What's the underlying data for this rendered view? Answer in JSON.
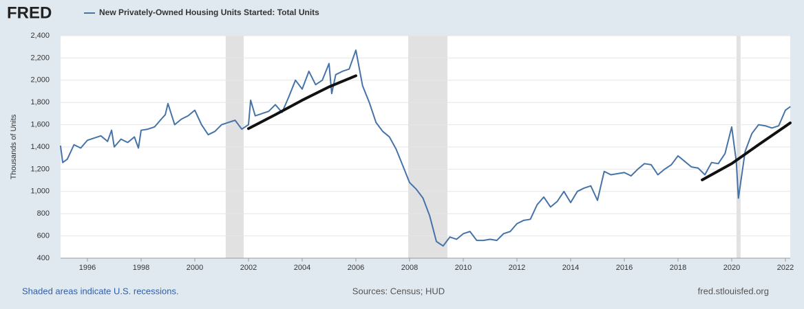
{
  "chart_data": {
    "type": "line",
    "logo": "FRED",
    "y_label": "Thousands of Units",
    "footer_left": "Shaded areas indicate U.S. recessions.",
    "footer_center": "Sources: Census; HUD",
    "footer_right": "fred.stlouisfed.org",
    "xlim": [
      1995,
      2022.18
    ],
    "ylim": [
      400,
      2400
    ],
    "xticks": [
      1996,
      1998,
      2000,
      2002,
      2004,
      2006,
      2008,
      2010,
      2012,
      2014,
      2016,
      2018,
      2020,
      2022
    ],
    "yticks": [
      400,
      600,
      800,
      {
        "value": 1000,
        "label": "1,000"
      },
      {
        "value": 1200,
        "label": "1,200"
      },
      {
        "value": 1400,
        "label": "1,400"
      },
      {
        "value": 1600,
        "label": "1,600"
      },
      {
        "value": 1800,
        "label": "1,800"
      },
      {
        "value": 2000,
        "label": "2,000"
      },
      {
        "value": 2200,
        "label": "2,200"
      },
      {
        "value": 2400,
        "label": "2,400"
      }
    ],
    "grid": true,
    "recessions": [
      [
        2001.15,
        2001.82
      ],
      [
        2007.95,
        2009.41
      ],
      [
        2020.18,
        2020.33
      ]
    ],
    "series": [
      {
        "name": "New Privately-Owned Housing Units Started: Total Units",
        "color": "#4572a7",
        "x": [
          1995,
          1995.08,
          1995.25,
          1995.5,
          1995.75,
          1996,
          1996.25,
          1996.5,
          1996.75,
          1996.9,
          1997,
          1997.25,
          1997.5,
          1997.75,
          1997.9,
          1998,
          1998.25,
          1998.5,
          1998.75,
          1998.9,
          1999,
          1999.25,
          1999.5,
          1999.75,
          2000,
          2000.25,
          2000.5,
          2000.75,
          2001,
          2001.25,
          2001.5,
          2001.75,
          2002,
          2002.08,
          2002.25,
          2002.5,
          2002.75,
          2003,
          2003.25,
          2003.5,
          2003.75,
          2004,
          2004.25,
          2004.5,
          2004.75,
          2005,
          2005.1,
          2005.25,
          2005.5,
          2005.75,
          2006,
          2006.25,
          2006.5,
          2006.75,
          2007,
          2007.25,
          2007.5,
          2007.75,
          2008,
          2008.25,
          2008.5,
          2008.75,
          2009,
          2009.25,
          2009.5,
          2009.75,
          2010,
          2010.25,
          2010.5,
          2010.75,
          2011,
          2011.25,
          2011.5,
          2011.75,
          2012,
          2012.25,
          2012.5,
          2012.75,
          2013,
          2013.25,
          2013.5,
          2013.75,
          2014,
          2014.25,
          2014.5,
          2014.75,
          2015,
          2015.25,
          2015.5,
          2015.75,
          2016,
          2016.25,
          2016.5,
          2016.75,
          2017,
          2017.25,
          2017.5,
          2017.75,
          2018,
          2018.25,
          2018.5,
          2018.75,
          2019,
          2019.25,
          2019.5,
          2019.75,
          2020,
          2020.17,
          2020.25,
          2020.5,
          2020.75,
          2021,
          2021.25,
          2021.5,
          2021.75,
          2022,
          2022.17
        ],
        "values": [
          1407,
          1260,
          1290,
          1420,
          1390,
          1460,
          1480,
          1500,
          1450,
          1550,
          1400,
          1470,
          1440,
          1490,
          1390,
          1550,
          1560,
          1580,
          1650,
          1690,
          1790,
          1600,
          1650,
          1680,
          1730,
          1600,
          1510,
          1540,
          1600,
          1620,
          1640,
          1560,
          1600,
          1820,
          1680,
          1700,
          1720,
          1780,
          1710,
          1850,
          2000,
          1920,
          2080,
          1960,
          2000,
          2150,
          1880,
          2050,
          2080,
          2100,
          2270,
          1950,
          1800,
          1620,
          1540,
          1490,
          1380,
          1230,
          1080,
          1020,
          940,
          780,
          550,
          510,
          590,
          570,
          620,
          640,
          560,
          560,
          570,
          560,
          620,
          640,
          710,
          740,
          750,
          880,
          950,
          860,
          910,
          1000,
          900,
          1000,
          1030,
          1050,
          920,
          1180,
          1150,
          1160,
          1170,
          1140,
          1200,
          1250,
          1240,
          1150,
          1200,
          1240,
          1320,
          1270,
          1220,
          1210,
          1150,
          1260,
          1250,
          1340,
          1580,
          1270,
          940,
          1360,
          1520,
          1600,
          1590,
          1570,
          1590,
          1730,
          1760
        ]
      },
      {
        "color": "#111111",
        "x": [
          2002,
          2003,
          2004,
          2005,
          2006
        ],
        "values": [
          1565,
          1690,
          1820,
          1940,
          2040
        ]
      },
      {
        "color": "#111111",
        "x": [
          2018.9,
          2020,
          2021,
          2022.18
        ],
        "values": [
          1104,
          1250,
          1420,
          1616
        ]
      }
    ]
  }
}
